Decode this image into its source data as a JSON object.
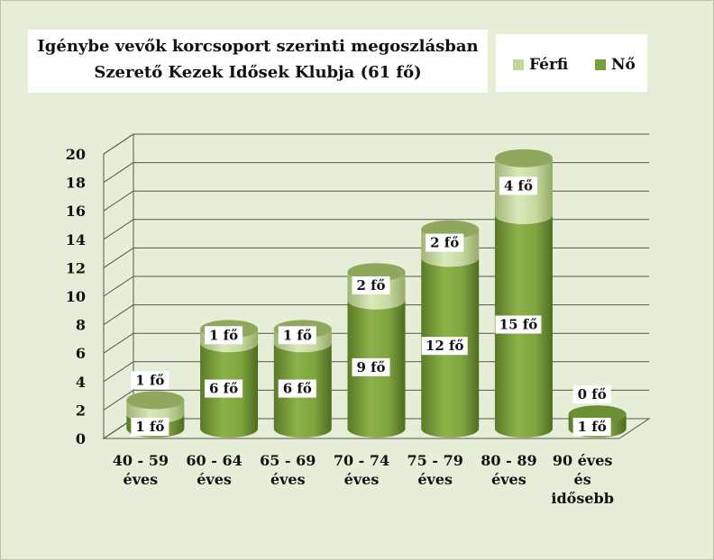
{
  "title_line1": "Igénybe vevők korcsoport szerinti megoszlásban",
  "title_line2": "Szerető Kezek Idősek Klubja (61 fő)",
  "colors": {
    "ferfi": "#c3d69b",
    "no": "#7a9e3b",
    "background": "#e6eed8"
  },
  "chart_data": {
    "type": "bar",
    "stacked": true,
    "shape": "3d-cylinder",
    "title": "Igénybe vevők korcsoport szerinti megoszlásban Szerető Kezek Idősek Klubja (61 fő)",
    "categories": [
      [
        "40 - 59",
        "éves"
      ],
      [
        "60 - 64",
        "éves"
      ],
      [
        "65 - 69",
        "éves"
      ],
      [
        "70 - 74",
        "éves"
      ],
      [
        "75 - 79",
        "éves"
      ],
      [
        "80 - 89",
        "éves"
      ],
      [
        "90 éves",
        "és",
        "idősebb"
      ]
    ],
    "series": [
      {
        "name": "Nő",
        "values": [
          1,
          6,
          6,
          9,
          12,
          15,
          1
        ],
        "labels": [
          "1 fő",
          "6 fő",
          "6 fő",
          "9 fő",
          "12 fő",
          "15 fő",
          "1 fő"
        ]
      },
      {
        "name": "Férfi",
        "values": [
          1,
          1,
          1,
          2,
          2,
          4,
          0
        ],
        "labels": [
          "1 fő",
          "1 fő",
          "1 fő",
          "2 fő",
          "2 fő",
          "4 fő",
          "0 fő"
        ]
      }
    ],
    "yticks": [
      "0",
      "2",
      "4",
      "6",
      "8",
      "10",
      "12",
      "14",
      "16",
      "18",
      "20"
    ],
    "ylim": [
      0,
      20
    ],
    "grid": true,
    "legend": {
      "position": "top-right",
      "entries": [
        "Férfi",
        "Nő"
      ]
    }
  }
}
